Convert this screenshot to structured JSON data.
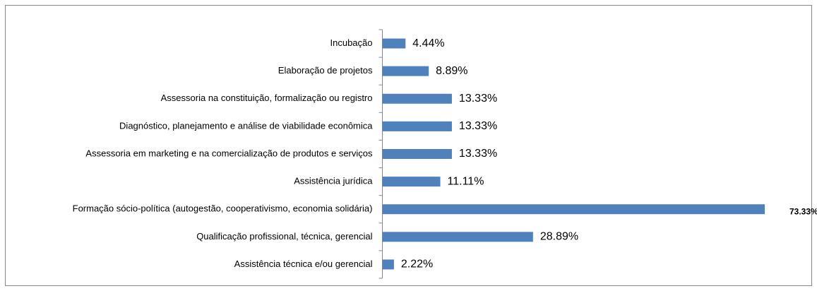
{
  "chart_data": {
    "type": "barh",
    "categories": [
      "Incubação",
      "Elaboração de projetos",
      "Assessoria na constituição, formalização ou registro",
      "Diagnóstico, planejamento e análise de viabilidade econômica",
      "Assessoria em marketing e na comercialização de produtos e serviços",
      "Assistência jurídica",
      "Formação sócio-política (autogestão, cooperativismo, economia solidária)",
      "Qualificação profissional, técnica, gerencial",
      "Assistência técnica e/ou gerencial"
    ],
    "values": [
      4.44,
      8.89,
      13.33,
      13.33,
      13.33,
      11.11,
      73.33,
      28.89,
      2.22
    ],
    "value_labels": [
      "4.44%",
      "8.89%",
      "13.33%",
      "13.33%",
      "13.33%",
      "11.11%",
      "73.33%",
      "28.89%",
      "2.22%"
    ],
    "color": "#4f81bd"
  }
}
